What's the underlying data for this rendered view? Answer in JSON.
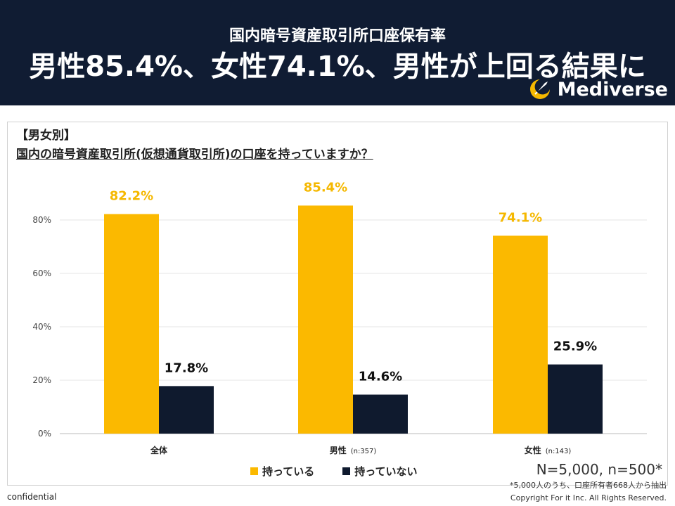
{
  "header": {
    "subtitle": "国内暗号資産取引所口座保有率",
    "title": "男性85.4%、女性74.1%、男性が上回る結果に",
    "logo_text": "Mediverse"
  },
  "section_label": "【男女別】",
  "question": "国内の暗号資産取引所(仮想通貨取引所)の口座を持っていますか？",
  "chart_data": {
    "type": "bar",
    "categories": [
      "全体",
      "男性",
      "女性"
    ],
    "category_notes": [
      "",
      "(n:357)",
      "(n:143)"
    ],
    "series": [
      {
        "name": "持っている",
        "values": [
          82.2,
          85.4,
          74.1
        ],
        "color": "#fbb900",
        "label_color": "#f5b800"
      },
      {
        "name": "持っていない",
        "values": [
          17.8,
          14.6,
          25.9
        ],
        "color": "#0f1a2e",
        "label_color": "#111111"
      }
    ],
    "value_labels": [
      [
        "82.2%",
        "85.4%",
        "74.1%"
      ],
      [
        "17.8%",
        "14.6%",
        "25.9%"
      ]
    ],
    "yticks": [
      "0%",
      "20%",
      "40%",
      "60%",
      "80%"
    ],
    "ylim": [
      0,
      100
    ],
    "grid": true,
    "legend_position": "bottom"
  },
  "sample": {
    "total": "N=5,000, n=500*",
    "note": "*5,000人のうち、口座所有者668人から抽出"
  },
  "footer": {
    "confidential": "confidential",
    "copyright": "Copyright For it Inc. All Rights Reserved."
  }
}
